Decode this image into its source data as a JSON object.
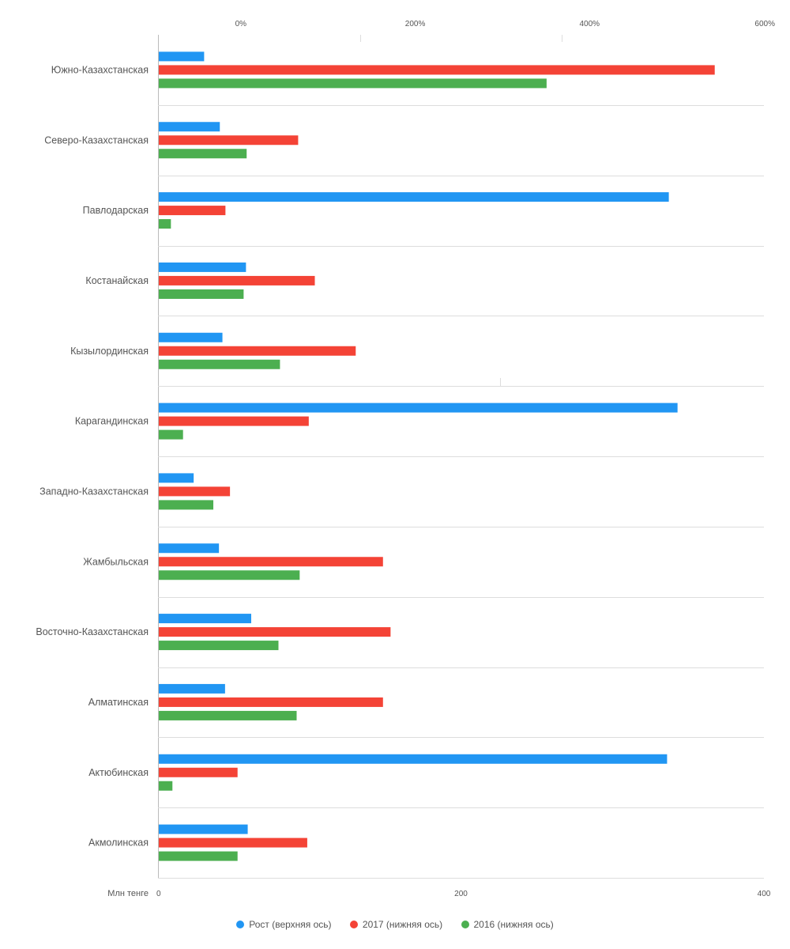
{
  "colors": {
    "growth": "#2196F3",
    "y2017": "#F44336",
    "y2016": "#4CAF50",
    "grid": "#dddddd",
    "axis": "#bbbbbb",
    "text": "#555555"
  },
  "chart_data": {
    "type": "bar",
    "orientation": "horizontal",
    "categories": [
      "Южно-Казахстанская",
      "Северо-Казахстанская",
      "Павлодарская",
      "Костанайская",
      "Кызылординская",
      "Карагандинская",
      "Западно-Казахстанская",
      "Жамбыльская",
      "Восточно-Казахстанская",
      "Алматинская",
      "Актюбинская",
      "Акмолинская"
    ],
    "top_axis": {
      "ticks": [
        0,
        200,
        400,
        600
      ],
      "tick_labels": [
        "0%",
        "200%",
        "400%",
        "600%"
      ],
      "range": [
        -95,
        600
      ]
    },
    "bottom_axis": {
      "label": "Млн тенге",
      "ticks": [
        0,
        200,
        400
      ],
      "tick_labels": [
        "0",
        "200",
        "400"
      ],
      "range": [
        0,
        400
      ]
    },
    "series": [
      {
        "name": "Рост (верхняя ось)",
        "axis": "top",
        "values": [
          -43,
          -25,
          490,
          5,
          -22,
          500,
          -55,
          -26,
          11,
          -19,
          488,
          7
        ]
      },
      {
        "name": "2017 (нижняя ось)",
        "axis": "bottom",
        "values": [
          367,
          92,
          44,
          103,
          130,
          99,
          47,
          148,
          153,
          148,
          52,
          98
        ]
      },
      {
        "name": "2016 (нижняя ось)",
        "axis": "bottom",
        "values": [
          256,
          58,
          8,
          56,
          80,
          16,
          36,
          93,
          79,
          91,
          9,
          52
        ]
      }
    ],
    "legend_position": "bottom",
    "grid": true
  }
}
